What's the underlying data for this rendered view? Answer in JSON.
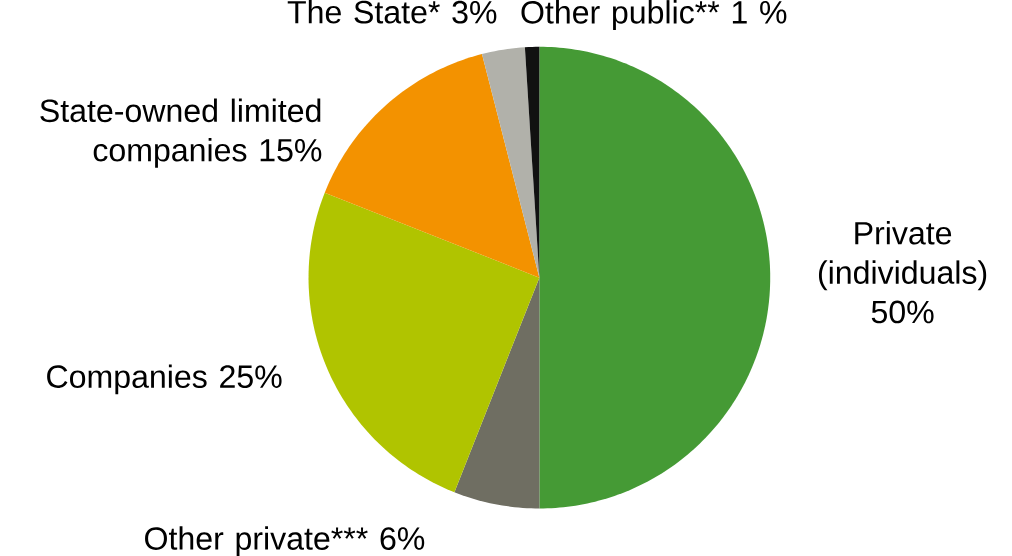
{
  "chart_data": {
    "type": "pie",
    "categories": [
      "Private (individuals)",
      "Other private***",
      "Companies",
      "State-owned limited companies",
      "The State*",
      "Other public**"
    ],
    "values": [
      50,
      6,
      25,
      15,
      3,
      1
    ],
    "value_labels": [
      "50%",
      "6%",
      "25%",
      "15%",
      "3%",
      "1 %"
    ],
    "colors": [
      "#459a35",
      "#6f6e62",
      "#b0c400",
      "#f39200",
      "#b1b1aa",
      "#111111"
    ]
  }
}
